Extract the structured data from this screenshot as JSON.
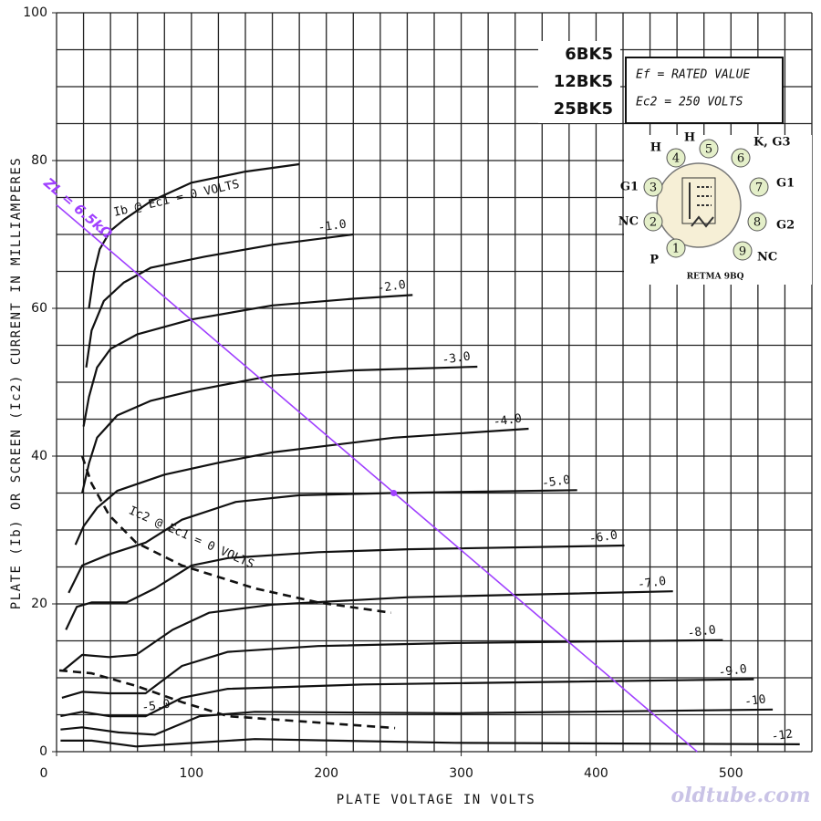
{
  "chart_data": {
    "type": "line",
    "x_label": "PLATE VOLTAGE IN VOLTS",
    "y_label": "PLATE (Ib) OR SCREEN (Ic2) CURRENT IN MILLIAMPERES",
    "xlim": [
      0,
      560
    ],
    "ylim": [
      0,
      100
    ],
    "xticks": [
      0,
      100,
      200,
      300,
      400,
      500
    ],
    "yticks": [
      0,
      20,
      40,
      60,
      80,
      100
    ],
    "xgrid": [
      0,
      20,
      40,
      60,
      80,
      100,
      120,
      140,
      160,
      180,
      200,
      220,
      240,
      260,
      280,
      300,
      320,
      340,
      360,
      380,
      400,
      420,
      440,
      460,
      480,
      500,
      520,
      540,
      560
    ],
    "ygrid": [
      0,
      5,
      10,
      15,
      20,
      25,
      30,
      35,
      40,
      45,
      50,
      55,
      60,
      65,
      70,
      75,
      80,
      85,
      90,
      95,
      100
    ],
    "grid": true,
    "series": [
      {
        "name": "Ib @ Ec1 = 0 VOLTS",
        "color": "#111111",
        "dashed": false,
        "x": [
          24,
          28,
          32,
          40,
          50,
          70,
          100,
          140,
          180
        ],
        "values": [
          60,
          65,
          68,
          70.5,
          72,
          74.5,
          77,
          78.5,
          79.5
        ]
      },
      {
        "name": "-1.0",
        "color": "#111111",
        "dashed": false,
        "x": [
          22,
          26,
          35,
          50,
          70,
          110,
          160,
          220
        ],
        "values": [
          52,
          57,
          61,
          63.5,
          65.5,
          67,
          68.6,
          70
        ]
      },
      {
        "name": "-2.0",
        "color": "#111111",
        "dashed": false,
        "x": [
          20,
          24,
          30,
          40,
          60,
          100,
          160,
          220,
          264
        ],
        "values": [
          44,
          48,
          52,
          54.5,
          56.5,
          58.5,
          60.4,
          61.3,
          61.8
        ]
      },
      {
        "name": "-3.0",
        "color": "#111111",
        "dashed": false,
        "x": [
          19,
          24,
          30,
          45,
          70,
          100,
          160,
          220,
          312
        ],
        "values": [
          35,
          39,
          42.5,
          45.5,
          47.5,
          48.8,
          50.9,
          51.6,
          52.1
        ]
      },
      {
        "name": "-4.0",
        "color": "#111111",
        "dashed": false,
        "x": [
          14,
          20,
          30,
          45,
          80,
          120,
          160,
          250,
          350
        ],
        "values": [
          28,
          30.5,
          33,
          35.3,
          37.5,
          39.1,
          40.5,
          42.5,
          43.7
        ]
      },
      {
        "name": "-5.0",
        "color": "#111111",
        "dashed": false,
        "x": [
          9,
          19,
          39,
          66,
          93,
          133,
          180,
          248,
          386
        ],
        "values": [
          21.5,
          25.2,
          26.7,
          28.3,
          31.4,
          33.8,
          34.7,
          35,
          35.4
        ]
      },
      {
        "name": "-6.0",
        "color": "#111111",
        "dashed": false,
        "x": [
          7,
          15,
          26,
          52,
          73,
          100,
          127,
          194,
          261,
          421
        ],
        "values": [
          16.5,
          19.6,
          20.2,
          20.2,
          22.1,
          25.2,
          26.2,
          27,
          27.4,
          27.9
        ]
      },
      {
        "name": "-7.0",
        "color": "#111111",
        "dashed": false,
        "x": [
          5,
          19,
          39,
          59,
          86,
          113,
          160,
          261,
          457
        ],
        "values": [
          11,
          13.1,
          12.8,
          13.1,
          16.5,
          18.8,
          19.9,
          20.9,
          21.7
        ]
      },
      {
        "name": "-8.0",
        "color": "#111111",
        "dashed": false,
        "x": [
          4,
          19,
          39,
          66,
          93,
          127,
          194,
          295,
          494
        ],
        "values": [
          7.3,
          8.1,
          7.9,
          7.9,
          11.6,
          13.5,
          14.3,
          14.7,
          15.1
        ]
      },
      {
        "name": "-9.0",
        "color": "#111111",
        "dashed": false,
        "x": [
          3,
          19,
          39,
          66,
          93,
          127,
          228,
          517
        ],
        "values": [
          4.8,
          5.4,
          4.8,
          4.8,
          7.3,
          8.5,
          9.1,
          9.8
        ]
      },
      {
        "name": "-10",
        "color": "#111111",
        "dashed": false,
        "x": [
          3,
          19,
          46,
          73,
          106,
          147,
          295,
          531
        ],
        "values": [
          3,
          3.3,
          2.6,
          2.3,
          4.8,
          5.4,
          5.2,
          5.7
        ]
      },
      {
        "name": "-12",
        "color": "#111111",
        "dashed": false,
        "x": [
          3,
          26,
          59,
          93,
          147,
          295,
          551
        ],
        "values": [
          1.5,
          1.5,
          0.7,
          1.1,
          1.7,
          1.2,
          1
        ]
      },
      {
        "name": "Ic2 @ Ec1 = 0 VOLTS",
        "color": "#111111",
        "dashed": true,
        "x": [
          19,
          26,
          39,
          59,
          93,
          147,
          194,
          248
        ],
        "values": [
          40,
          36.3,
          32,
          28.3,
          25.2,
          22.1,
          20.2,
          18.8
        ]
      },
      {
        "name": "-5.0",
        "color": "#111111",
        "dashed": true,
        "x": [
          2,
          26,
          59,
          93,
          127,
          174,
          251
        ],
        "values": [
          11,
          10.6,
          8.9,
          6.7,
          4.8,
          4.2,
          3.2
        ]
      }
    ],
    "load_line": {
      "label": "ZL = 6.5kΩ",
      "color": "#a040ff",
      "x": [
        0,
        475
      ],
      "values": [
        74,
        0
      ],
      "point": {
        "x": 250,
        "value": 35
      }
    },
    "tube_types": [
      "6BK5",
      "12BK5",
      "25BK5"
    ],
    "conditions": [
      "Ef = RATED VALUE",
      "Ec2 = 250 VOLTS"
    ],
    "basing": {
      "name": "RETMA 9BQ",
      "pins": [
        {
          "number": "1",
          "label": "P"
        },
        {
          "number": "2",
          "label": "NC"
        },
        {
          "number": "3",
          "label": "G1"
        },
        {
          "number": "4",
          "label": "H"
        },
        {
          "number": "5",
          "label": "H"
        },
        {
          "number": "6",
          "label": "K, G3"
        },
        {
          "number": "7",
          "label": "G1"
        },
        {
          "number": "8",
          "label": "G2"
        },
        {
          "number": "9",
          "label": "NC"
        }
      ]
    },
    "watermark": "oldtube.com"
  }
}
